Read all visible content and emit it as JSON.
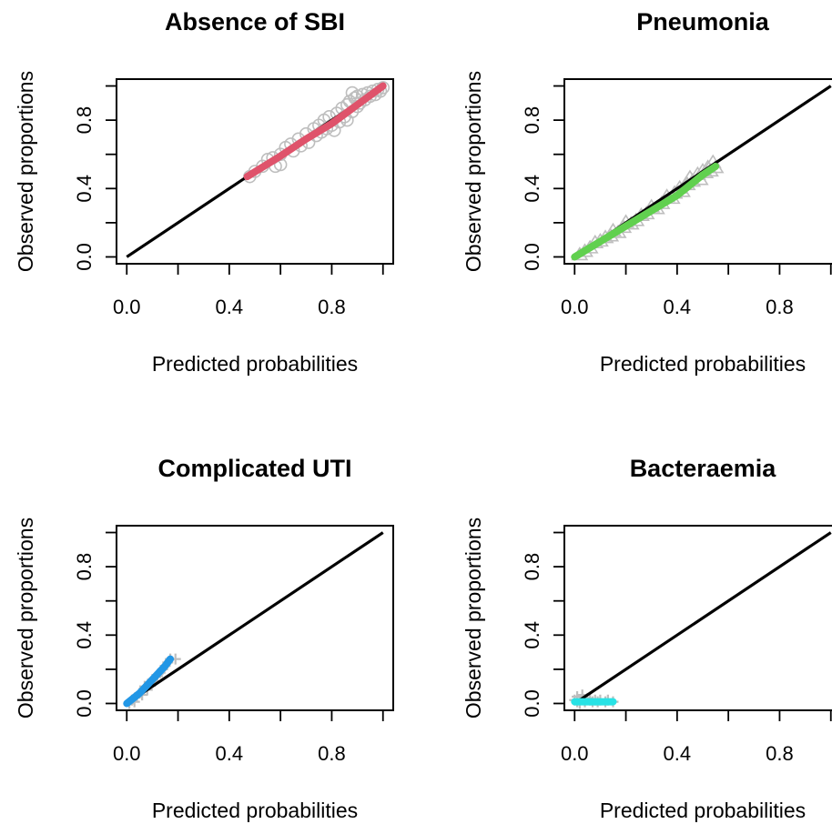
{
  "chart_data": [
    {
      "type": "scatter",
      "title": "Absence of SBI",
      "xlabel": "Predicted probabilities",
      "ylabel": "Observed proportions",
      "xlim": [
        0,
        1
      ],
      "ylim": [
        0,
        1
      ],
      "x_ticks": [
        "0.0",
        "0.4",
        "0.8"
      ],
      "y_ticks": [
        "0.0",
        "0.4",
        "0.8"
      ],
      "x_minor_ticks": [
        0,
        0.2,
        0.4,
        0.6,
        0.8,
        1.0
      ],
      "y_minor_ticks": [
        0,
        0.2,
        0.4,
        0.6,
        0.8,
        1.0
      ],
      "marker": "circle",
      "point_color": "#bebebe",
      "fit_color": "#df536b",
      "reference_line": {
        "x": [
          0,
          1
        ],
        "y": [
          0,
          1
        ]
      },
      "points": [
        [
          0.48,
          0.47
        ],
        [
          0.5,
          0.5
        ],
        [
          0.53,
          0.53
        ],
        [
          0.55,
          0.57
        ],
        [
          0.57,
          0.58
        ],
        [
          0.58,
          0.53
        ],
        [
          0.6,
          0.6
        ],
        [
          0.6,
          0.54
        ],
        [
          0.62,
          0.64
        ],
        [
          0.64,
          0.66
        ],
        [
          0.65,
          0.62
        ],
        [
          0.67,
          0.69
        ],
        [
          0.68,
          0.65
        ],
        [
          0.7,
          0.72
        ],
        [
          0.71,
          0.67
        ],
        [
          0.73,
          0.75
        ],
        [
          0.74,
          0.71
        ],
        [
          0.75,
          0.77
        ],
        [
          0.76,
          0.73
        ],
        [
          0.77,
          0.8
        ],
        [
          0.78,
          0.75
        ],
        [
          0.79,
          0.82
        ],
        [
          0.8,
          0.77
        ],
        [
          0.81,
          0.74
        ],
        [
          0.82,
          0.84
        ],
        [
          0.83,
          0.79
        ],
        [
          0.84,
          0.87
        ],
        [
          0.85,
          0.82
        ],
        [
          0.86,
          0.89
        ],
        [
          0.86,
          0.8
        ],
        [
          0.87,
          0.91
        ],
        [
          0.88,
          0.85
        ],
        [
          0.88,
          0.96
        ],
        [
          0.89,
          0.93
        ],
        [
          0.9,
          0.88
        ],
        [
          0.9,
          0.94
        ],
        [
          0.91,
          0.9
        ],
        [
          0.92,
          0.95
        ],
        [
          0.93,
          0.92
        ],
        [
          0.94,
          0.96
        ],
        [
          0.95,
          0.94
        ],
        [
          0.96,
          0.97
        ],
        [
          0.97,
          0.95
        ],
        [
          0.98,
          0.98
        ],
        [
          0.99,
          0.97
        ],
        [
          1.0,
          0.99
        ]
      ],
      "fit": {
        "x": [
          0.47,
          0.6,
          0.7,
          0.8,
          0.9,
          1.0
        ],
        "y": [
          0.47,
          0.59,
          0.69,
          0.78,
          0.89,
          1.0
        ]
      }
    },
    {
      "type": "scatter",
      "title": "Pneumonia",
      "xlabel": "Predicted probabilities",
      "ylabel": "Observed proportions",
      "xlim": [
        0,
        1
      ],
      "ylim": [
        0,
        1
      ],
      "x_ticks": [
        "0.0",
        "0.4",
        "0.8"
      ],
      "y_ticks": [
        "0.0",
        "0.4",
        "0.8"
      ],
      "x_minor_ticks": [
        0,
        0.2,
        0.4,
        0.6,
        0.8,
        1.0
      ],
      "y_minor_ticks": [
        0,
        0.2,
        0.4,
        0.6,
        0.8,
        1.0
      ],
      "marker": "triangle",
      "point_color": "#bebebe",
      "fit_color": "#61d04f",
      "reference_line": {
        "x": [
          0,
          1
        ],
        "y": [
          0,
          1
        ]
      },
      "points": [
        [
          0.02,
          0.01
        ],
        [
          0.04,
          0.03
        ],
        [
          0.06,
          0.05
        ],
        [
          0.08,
          0.08
        ],
        [
          0.1,
          0.09
        ],
        [
          0.12,
          0.11
        ],
        [
          0.14,
          0.12
        ],
        [
          0.15,
          0.15
        ],
        [
          0.17,
          0.14
        ],
        [
          0.19,
          0.17
        ],
        [
          0.2,
          0.2
        ],
        [
          0.22,
          0.19
        ],
        [
          0.24,
          0.21
        ],
        [
          0.26,
          0.24
        ],
        [
          0.28,
          0.25
        ],
        [
          0.3,
          0.29
        ],
        [
          0.32,
          0.28
        ],
        [
          0.34,
          0.31
        ],
        [
          0.36,
          0.35
        ],
        [
          0.38,
          0.34
        ],
        [
          0.39,
          0.37
        ],
        [
          0.41,
          0.4
        ],
        [
          0.42,
          0.38
        ],
        [
          0.44,
          0.42
        ],
        [
          0.45,
          0.46
        ],
        [
          0.46,
          0.44
        ],
        [
          0.48,
          0.48
        ],
        [
          0.49,
          0.45
        ],
        [
          0.5,
          0.5
        ],
        [
          0.51,
          0.49
        ],
        [
          0.52,
          0.52
        ],
        [
          0.53,
          0.5
        ],
        [
          0.54,
          0.55
        ],
        [
          0.55,
          0.52
        ]
      ],
      "fit": {
        "x": [
          0,
          0.1,
          0.2,
          0.3,
          0.4,
          0.5,
          0.55
        ],
        "y": [
          0,
          0.09,
          0.18,
          0.27,
          0.36,
          0.48,
          0.53
        ]
      }
    },
    {
      "type": "scatter",
      "title": "Complicated UTI",
      "xlabel": "Predicted probabilities",
      "ylabel": "Observed proportions",
      "xlim": [
        0,
        1
      ],
      "ylim": [
        0,
        1
      ],
      "x_ticks": [
        "0.0",
        "0.4",
        "0.8"
      ],
      "y_ticks": [
        "0.0",
        "0.4",
        "0.8"
      ],
      "x_minor_ticks": [
        0,
        0.2,
        0.4,
        0.6,
        0.8,
        1.0
      ],
      "y_minor_ticks": [
        0,
        0.2,
        0.4,
        0.6,
        0.8,
        1.0
      ],
      "marker": "plus",
      "point_color": "#bebebe",
      "fit_color": "#2297e6",
      "reference_line": {
        "x": [
          0,
          1
        ],
        "y": [
          0,
          1
        ]
      },
      "points": [
        [
          0.01,
          0.0
        ],
        [
          0.02,
          0.02
        ],
        [
          0.03,
          0.01
        ],
        [
          0.04,
          0.04
        ],
        [
          0.05,
          0.06
        ],
        [
          0.06,
          0.05
        ],
        [
          0.07,
          0.1
        ],
        [
          0.08,
          0.08
        ],
        [
          0.09,
          0.12
        ],
        [
          0.1,
          0.14
        ],
        [
          0.11,
          0.13
        ],
        [
          0.12,
          0.16
        ],
        [
          0.13,
          0.18
        ],
        [
          0.14,
          0.2
        ],
        [
          0.15,
          0.22
        ],
        [
          0.16,
          0.24
        ],
        [
          0.17,
          0.26
        ],
        [
          0.19,
          0.26
        ]
      ],
      "fit": {
        "x": [
          0,
          0.05,
          0.1,
          0.15,
          0.17
        ],
        "y": [
          0,
          0.06,
          0.14,
          0.22,
          0.26
        ]
      }
    },
    {
      "type": "scatter",
      "title": "Bacteraemia",
      "xlabel": "Predicted probabilities",
      "ylabel": "Observed proportions",
      "xlim": [
        0,
        1
      ],
      "ylim": [
        0,
        1
      ],
      "x_ticks": [
        "0.0",
        "0.4",
        "0.8"
      ],
      "y_ticks": [
        "0.0",
        "0.4",
        "0.8"
      ],
      "x_minor_ticks": [
        0,
        0.2,
        0.4,
        0.6,
        0.8,
        1.0
      ],
      "y_minor_ticks": [
        0,
        0.2,
        0.4,
        0.6,
        0.8,
        1.0
      ],
      "marker": "plus",
      "point_color": "#bebebe",
      "fit_color": "#28e2e5",
      "reference_line": {
        "x": [
          0,
          1
        ],
        "y": [
          0,
          1
        ]
      },
      "points": [
        [
          0.0,
          0.02
        ],
        [
          0.01,
          0.01
        ],
        [
          0.01,
          0.04
        ],
        [
          0.02,
          0.0
        ],
        [
          0.02,
          0.02
        ],
        [
          0.03,
          0.05
        ],
        [
          0.04,
          0.01
        ],
        [
          0.05,
          0.03
        ],
        [
          0.06,
          0.02
        ],
        [
          0.07,
          0.01
        ],
        [
          0.08,
          0.02
        ],
        [
          0.09,
          0.01
        ],
        [
          0.1,
          0.02
        ],
        [
          0.12,
          0.01
        ],
        [
          0.13,
          0.02
        ],
        [
          0.15,
          0.01
        ]
      ],
      "fit": {
        "x": [
          0.0,
          0.05,
          0.1,
          0.15
        ],
        "y": [
          0.01,
          0.01,
          0.01,
          0.01
        ]
      }
    }
  ]
}
